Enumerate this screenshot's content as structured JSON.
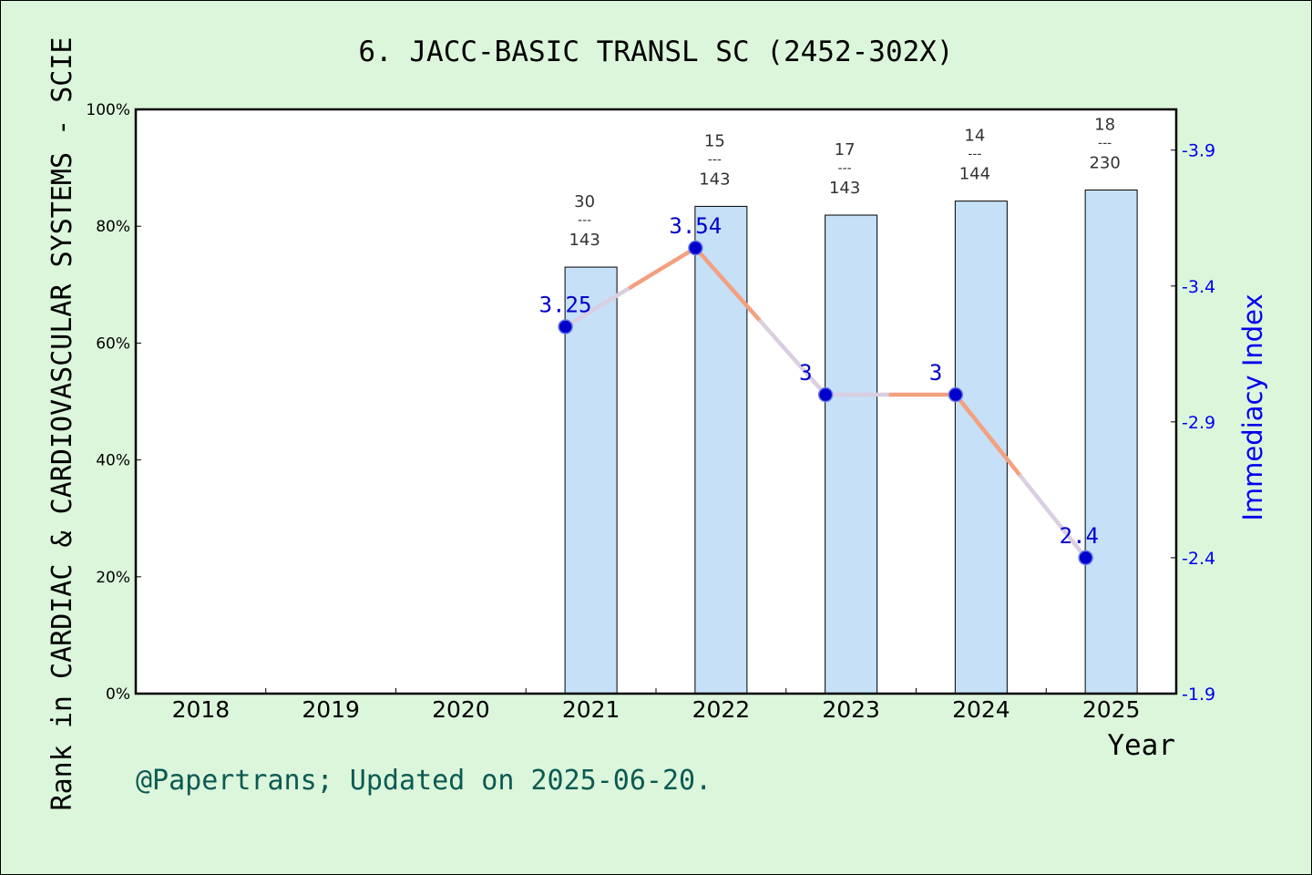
{
  "chart_data": {
    "type": "bar",
    "title": "6. JACC-BASIC TRANSL SC (2452-302X)",
    "xlabel": "Year",
    "ylabel": "Rank in CARDIAC & CARDIOVASCULAR SYSTEMS - SCIE",
    "y2label": "Immediacy Index",
    "categories": [
      "2018",
      "2019",
      "2020",
      "2021",
      "2022",
      "2023",
      "2024",
      "2025"
    ],
    "ylim": [
      0,
      100
    ],
    "y_ticks": [
      "0%",
      "20%",
      "40%",
      "60%",
      "80%",
      "100%"
    ],
    "y2lim": [
      1.9,
      4.05
    ],
    "y2_ticks": [
      "1.9",
      "2.4",
      "2.9",
      "3.4",
      "3.9"
    ],
    "series": [
      {
        "kind": "bar",
        "values": [
          null,
          null,
          null,
          73.0,
          83.4,
          81.9,
          84.3,
          86.2
        ],
        "rank_labels": [
          null,
          null,
          null,
          {
            "rank": "30",
            "sep": "---",
            "total": "143"
          },
          {
            "rank": "15",
            "sep": "---",
            "total": "143"
          },
          {
            "rank": "17",
            "sep": "---",
            "total": "143"
          },
          {
            "rank": "14",
            "sep": "---",
            "total": "144"
          },
          {
            "rank": "18",
            "sep": "---",
            "total": "230"
          }
        ],
        "color": "#c5e0f7"
      },
      {
        "kind": "line",
        "axis": "right",
        "values": [
          null,
          null,
          null,
          3.25,
          3.54,
          3.0,
          3.0,
          2.4
        ],
        "labels": [
          null,
          null,
          null,
          "3.25",
          "3.54",
          "3",
          "3",
          "2.4"
        ],
        "color": "#f4a07f",
        "marker_color": "#0000cc"
      }
    ],
    "grid": false
  },
  "footer": {
    "credit": "@Papertrans; Updated on 2025-06-20."
  }
}
